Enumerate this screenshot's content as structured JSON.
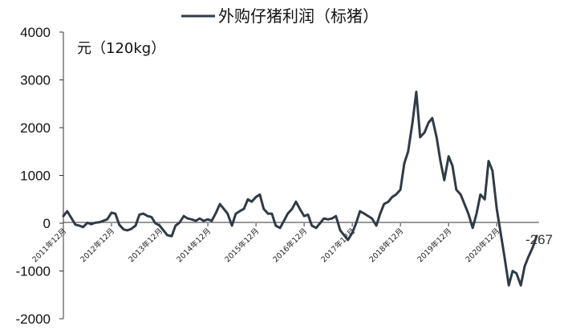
{
  "chart_data": {
    "type": "line",
    "title": "外购仔猪利润（标猪）",
    "ylabel": "元（120kg）",
    "ylim": [
      -2000,
      4000
    ],
    "yticks": [
      -2000,
      -1000,
      0,
      1000,
      2000,
      3000,
      4000
    ],
    "ytick_labels": [
      "-2000",
      "-1000",
      "0",
      "1000",
      "2000",
      "3000",
      "4000"
    ],
    "xlim": [
      2011.92,
      2021.8
    ],
    "xticks": [
      2011.92,
      2012.92,
      2013.92,
      2014.92,
      2015.92,
      2016.92,
      2017.92,
      2018.92,
      2019.92,
      2020.92
    ],
    "xtick_labels": [
      "2011年12月",
      "2012年12月",
      "2013年12月",
      "2014年12月",
      "2015年12月",
      "2016年12月",
      "2017年12月",
      "2018年12月",
      "2019年12月",
      "2020年12月"
    ],
    "grid": false,
    "legend": "top",
    "series": [
      {
        "name": "外购仔猪利润（标猪）",
        "color": "#2f3b47",
        "x": [
          2011.92,
          2012.0,
          2012.08,
          2012.17,
          2012.25,
          2012.33,
          2012.42,
          2012.5,
          2012.58,
          2012.67,
          2012.75,
          2012.83,
          2012.92,
          2013.0,
          2013.08,
          2013.17,
          2013.25,
          2013.33,
          2013.42,
          2013.5,
          2013.58,
          2013.67,
          2013.75,
          2013.83,
          2013.92,
          2014.0,
          2014.08,
          2014.17,
          2014.25,
          2014.33,
          2014.42,
          2014.5,
          2014.58,
          2014.67,
          2014.75,
          2014.83,
          2014.92,
          2015.0,
          2015.08,
          2015.17,
          2015.25,
          2015.33,
          2015.42,
          2015.5,
          2015.58,
          2015.67,
          2015.75,
          2015.83,
          2015.92,
          2016.0,
          2016.08,
          2016.17,
          2016.25,
          2016.33,
          2016.42,
          2016.5,
          2016.58,
          2016.67,
          2016.75,
          2016.83,
          2016.92,
          2017.0,
          2017.08,
          2017.17,
          2017.25,
          2017.33,
          2017.42,
          2017.5,
          2017.58,
          2017.67,
          2017.75,
          2017.83,
          2017.92,
          2018.0,
          2018.08,
          2018.17,
          2018.25,
          2018.33,
          2018.42,
          2018.5,
          2018.58,
          2018.67,
          2018.75,
          2018.83,
          2018.92,
          2019.0,
          2019.08,
          2019.17,
          2019.25,
          2019.33,
          2019.42,
          2019.5,
          2019.58,
          2019.67,
          2019.75,
          2019.83,
          2019.92,
          2020.0,
          2020.08,
          2020.17,
          2020.25,
          2020.33,
          2020.42,
          2020.5,
          2020.58,
          2020.67,
          2020.75,
          2020.83,
          2020.92,
          2021.0,
          2021.08,
          2021.17,
          2021.25,
          2021.33,
          2021.42,
          2021.5,
          2021.58,
          2021.67,
          2021.75
        ],
        "y": [
          150,
          250,
          120,
          -30,
          -50,
          -80,
          10,
          -20,
          10,
          20,
          50,
          80,
          220,
          200,
          -30,
          -130,
          -150,
          -120,
          -50,
          180,
          200,
          150,
          130,
          0,
          -50,
          -150,
          -250,
          -270,
          -50,
          10,
          150,
          100,
          80,
          50,
          100,
          50,
          80,
          50,
          200,
          400,
          300,
          200,
          -50,
          200,
          250,
          300,
          500,
          450,
          550,
          600,
          300,
          200,
          200,
          -50,
          -100,
          50,
          200,
          300,
          450,
          300,
          150,
          180,
          -50,
          -100,
          0,
          100,
          80,
          100,
          150,
          -150,
          -250,
          -350,
          -200,
          0,
          250,
          200,
          150,
          100,
          -50,
          200,
          400,
          450,
          550,
          600,
          700,
          1250,
          1500,
          2100,
          2750,
          1800,
          1900,
          2100,
          2200,
          1800,
          1300,
          900,
          1400,
          1200,
          700,
          600,
          400,
          200,
          -100,
          200,
          600,
          500,
          1300,
          1100,
          300,
          -200,
          -700,
          -1300,
          -1000,
          -1050,
          -1300,
          -900,
          -700,
          -500,
          -267
        ]
      }
    ],
    "annotations": [
      {
        "text": "-267",
        "x": 2021.75,
        "y": -267
      }
    ]
  }
}
